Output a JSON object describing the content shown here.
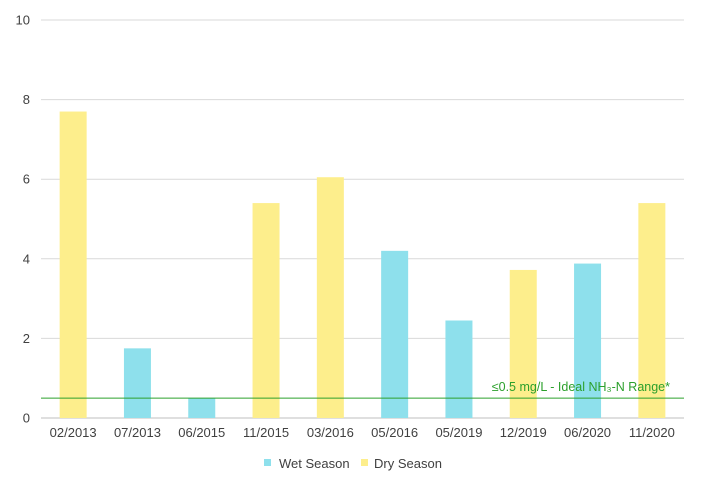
{
  "chart_data": {
    "type": "bar",
    "categories": [
      "02/2013",
      "07/2013",
      "06/2015",
      "11/2015",
      "03/2016",
      "05/2016",
      "05/2019",
      "12/2019",
      "06/2020",
      "11/2020"
    ],
    "values": [
      7.7,
      1.75,
      0.5,
      5.4,
      6.05,
      4.2,
      2.45,
      3.72,
      3.88,
      5.4
    ],
    "season": [
      "Dry Season",
      "Wet Season",
      "Wet Season",
      "Dry Season",
      "Dry Season",
      "Wet Season",
      "Wet Season",
      "Dry Season",
      "Wet Season",
      "Dry Season"
    ],
    "series": [
      {
        "name": "Wet Season",
        "color": "#8ee0ec"
      },
      {
        "name": "Dry Season",
        "color": "#fdee8c"
      }
    ],
    "ylim": [
      0,
      10
    ],
    "yticks": [
      0,
      2,
      4,
      6,
      8,
      10
    ],
    "reference_line": {
      "value": 0.5,
      "label": "≤0.5 mg/L - Ideal NH₃-N Range*",
      "color": "#2ca02c"
    },
    "grid": true,
    "legend_position": "bottom",
    "title": "",
    "xlabel": "",
    "ylabel": ""
  }
}
